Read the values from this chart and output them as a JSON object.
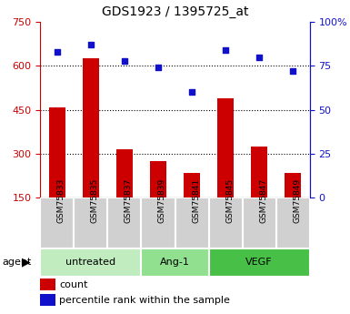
{
  "title": "GDS1923 / 1395725_at",
  "samples": [
    "GSM75833",
    "GSM75835",
    "GSM75837",
    "GSM75839",
    "GSM75841",
    "GSM75845",
    "GSM75847",
    "GSM75849"
  ],
  "counts": [
    460,
    625,
    315,
    275,
    235,
    490,
    325,
    235
  ],
  "percentile_ranks": [
    83,
    87,
    78,
    74,
    60,
    84,
    80,
    72
  ],
  "groups": [
    {
      "label": "untreated",
      "indices": [
        0,
        1,
        2
      ],
      "color": "#c0ecc0"
    },
    {
      "label": "Ang-1",
      "indices": [
        3,
        4
      ],
      "color": "#90e090"
    },
    {
      "label": "VEGF",
      "indices": [
        5,
        6,
        7
      ],
      "color": "#48c048"
    }
  ],
  "ylim_left": [
    150,
    750
  ],
  "ylim_right": [
    0,
    100
  ],
  "left_ticks": [
    150,
    300,
    450,
    600,
    750
  ],
  "right_ticks": [
    0,
    25,
    50,
    75,
    100
  ],
  "right_tick_labels": [
    "0",
    "25",
    "50",
    "75",
    "100%"
  ],
  "bar_color": "#cc0000",
  "dot_color": "#1111cc",
  "bar_width": 0.5,
  "bar_bottom": 150,
  "legend_count_color": "#cc0000",
  "legend_dot_color": "#1111cc",
  "agent_label": "agent",
  "left_tick_color": "#cc0000",
  "right_tick_color": "#1111cc",
  "grid_ticks": [
    300,
    450,
    600
  ],
  "sample_box_color": "#d0d0d0",
  "sample_box_edge": "#ffffff"
}
